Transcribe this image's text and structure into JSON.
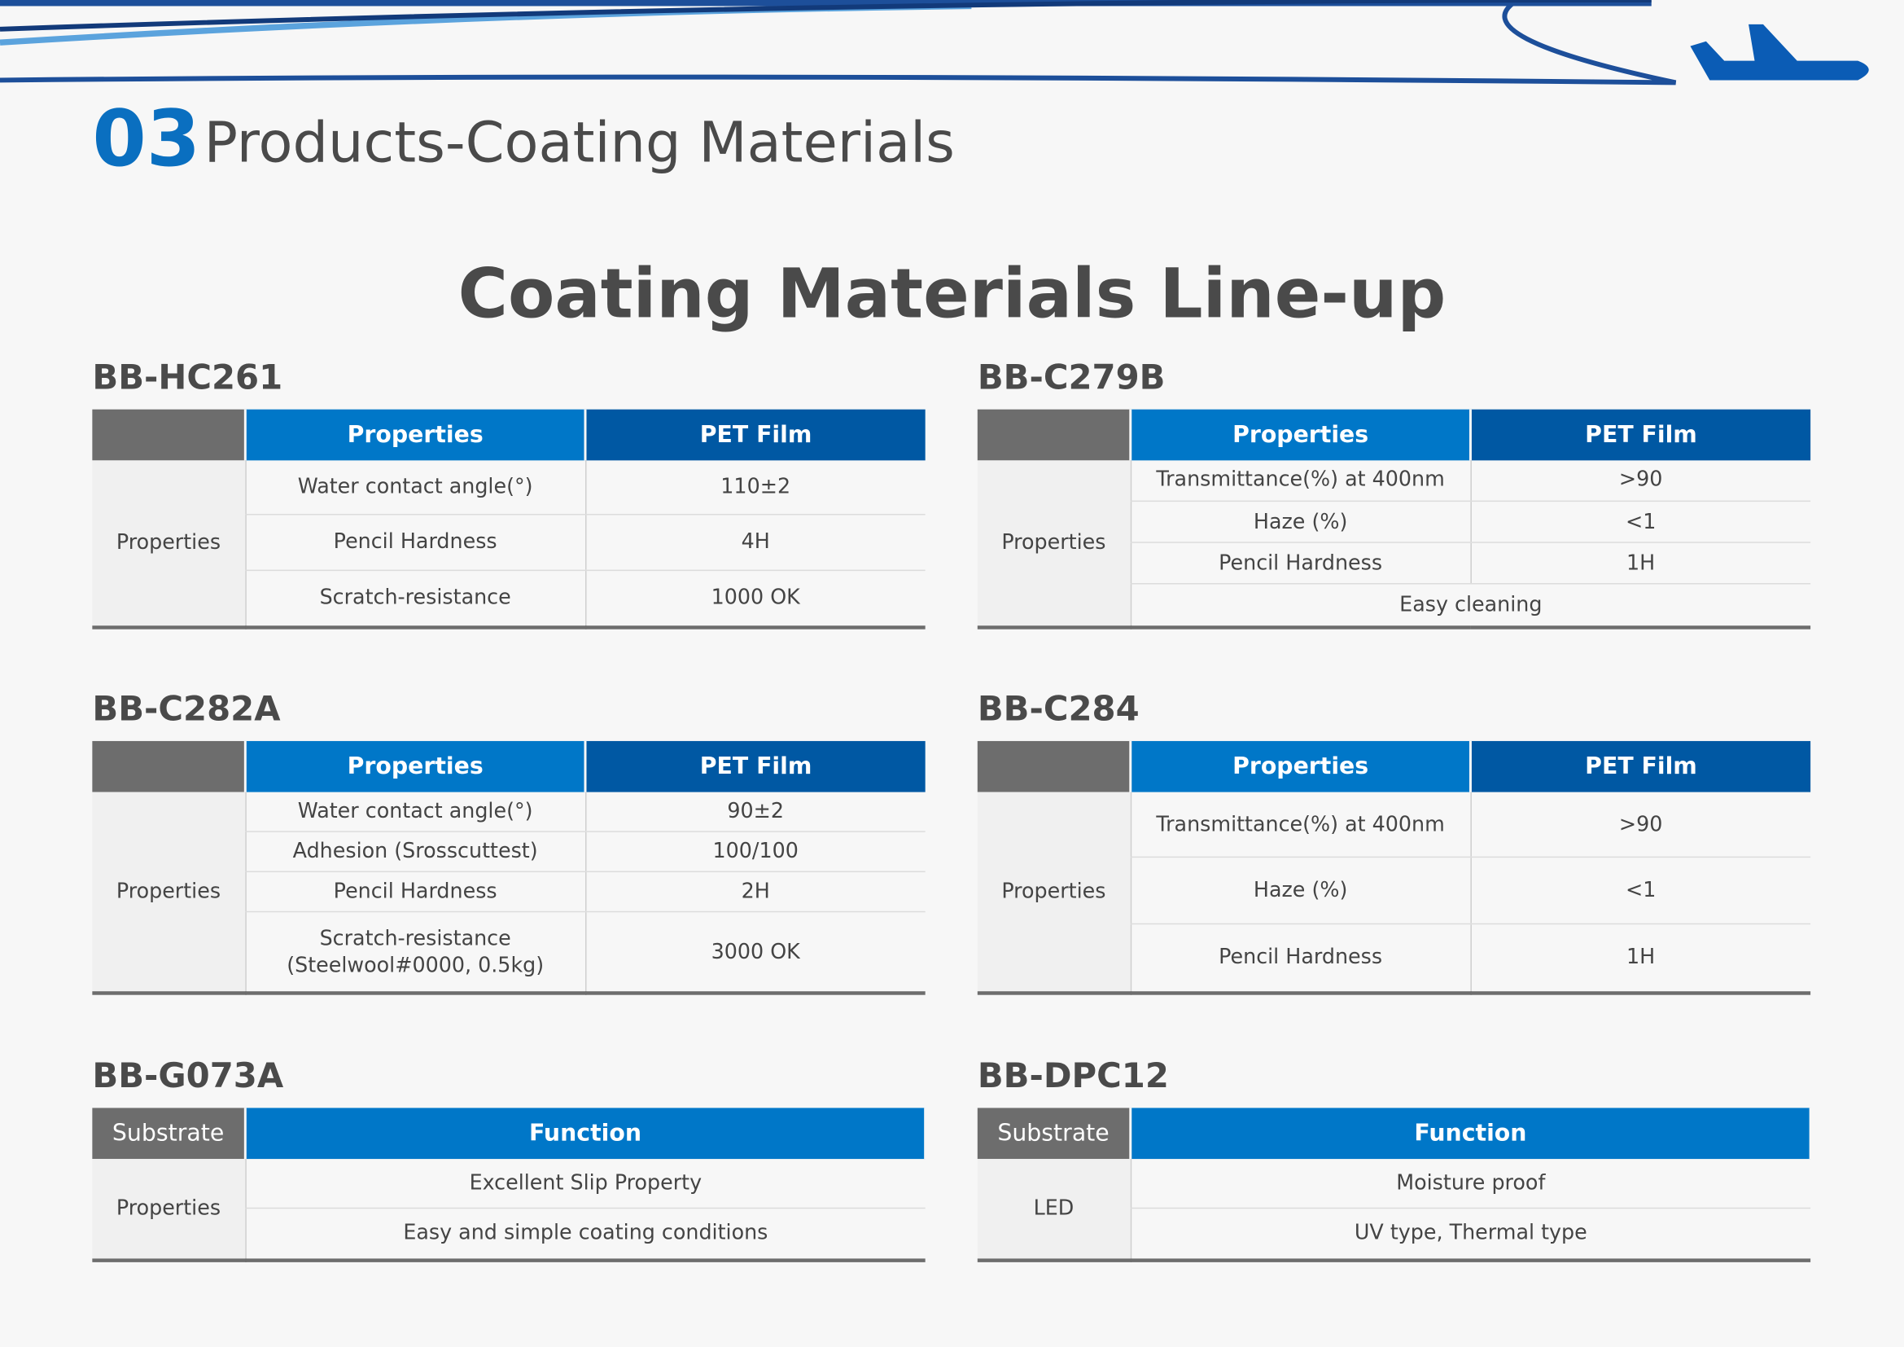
{
  "header": {
    "number": "03",
    "title": "Products-Coating Materials"
  },
  "heading": "Coating Materials Line-up",
  "tables": [
    {
      "name": "BB-HC261",
      "headers": [
        "Properties",
        "PET Film"
      ],
      "row_label": "Properties",
      "rows": [
        [
          "Water contact angle(°)",
          "110±2"
        ],
        [
          "Pencil Hardness",
          "4H"
        ],
        [
          "Scratch-resistance",
          "1000 OK"
        ]
      ]
    },
    {
      "name": "BB-C279B",
      "headers": [
        "Properties",
        "PET Film"
      ],
      "row_label": "Properties",
      "rows": [
        [
          "Transmittance(%) at 400nm",
          ">90"
        ],
        [
          "Haze (%)",
          "<1"
        ],
        [
          "Pencil Hardness",
          "1H"
        ],
        [
          "Easy cleaning"
        ]
      ]
    },
    {
      "name": "BB-C282A",
      "headers": [
        "Properties",
        "PET Film"
      ],
      "row_label": "Properties",
      "rows": [
        [
          "Water contact angle(°)",
          "90±2"
        ],
        [
          "Adhesion (Srosscuttest)",
          "100/100"
        ],
        [
          "Pencil Hardness",
          "2H"
        ],
        [
          "Scratch-resistance\n(Steelwool#0000, 0.5kg)",
          "3000 OK"
        ]
      ]
    },
    {
      "name": "BB-C284",
      "headers": [
        "Properties",
        "PET Film"
      ],
      "row_label": "Properties",
      "rows": [
        [
          "Transmittance(%) at 400nm",
          ">90"
        ],
        [
          "Haze (%)",
          "<1"
        ],
        [
          "Pencil Hardness",
          "1H"
        ]
      ]
    },
    {
      "name": "BB-G073A",
      "corner": "Substrate",
      "headers": [
        "Function"
      ],
      "row_label": "Properties",
      "rows": [
        [
          "Excellent Slip Property"
        ],
        [
          "Easy and simple coating conditions"
        ]
      ]
    },
    {
      "name": "BB-DPC12",
      "corner": "Substrate",
      "headers": [
        "Function"
      ],
      "row_label": "LED",
      "rows": [
        [
          "Moisture proof"
        ],
        [
          "UV type, Thermal type"
        ]
      ]
    }
  ]
}
